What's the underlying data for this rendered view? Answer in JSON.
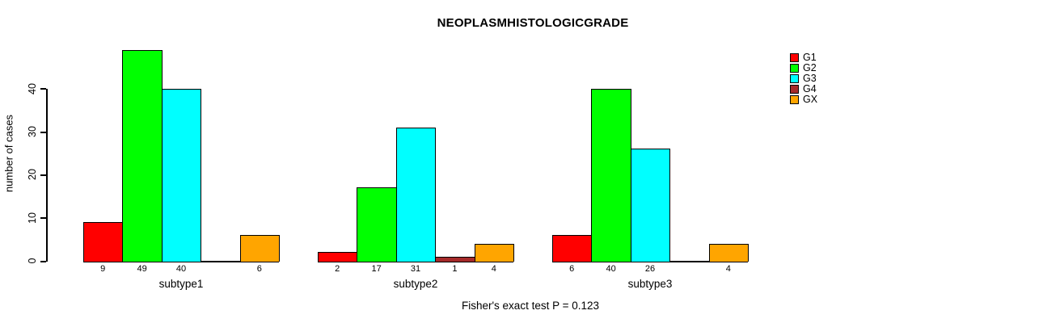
{
  "chart_data": {
    "type": "bar",
    "title": "NEOPLASMHISTOLOGICGRADE",
    "ylabel": "number of cases",
    "xlabel": "",
    "ylim": [
      0,
      49
    ],
    "yticks": [
      0,
      10,
      20,
      30,
      40
    ],
    "grid": false,
    "legend_position": "top-right",
    "categories": [
      "G1",
      "G2",
      "G3",
      "G4",
      "GX"
    ],
    "groups": [
      {
        "label": "subtype1",
        "values": [
          9,
          49,
          40,
          0,
          6
        ],
        "bar_labels": [
          "9",
          "49",
          "40",
          "",
          "6"
        ]
      },
      {
        "label": "subtype2",
        "values": [
          2,
          17,
          31,
          1,
          4
        ],
        "bar_labels": [
          "2",
          "17",
          "31",
          "1",
          "4"
        ]
      },
      {
        "label": "subtype3",
        "values": [
          6,
          40,
          26,
          0,
          4
        ],
        "bar_labels": [
          "6",
          "40",
          "26",
          "",
          "4"
        ]
      }
    ],
    "legend": [
      {
        "label": "G1",
        "color": "#FF0000"
      },
      {
        "label": "G2",
        "color": "#00FF00"
      },
      {
        "label": "G3",
        "color": "#00FFFF"
      },
      {
        "label": "G4",
        "color": "#A52A2A"
      },
      {
        "label": "GX",
        "color": "#FFA500"
      }
    ],
    "annotation": "Fisher's exact test P = 0.123"
  }
}
